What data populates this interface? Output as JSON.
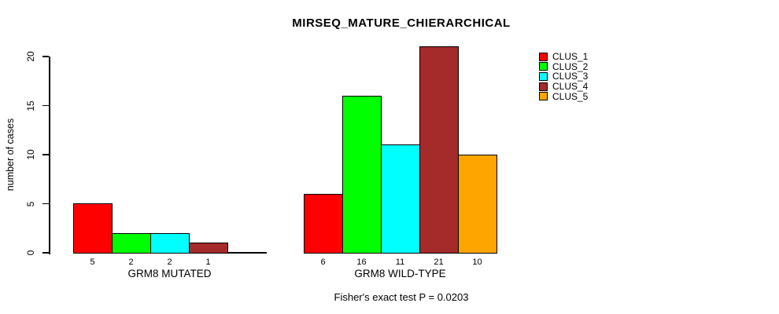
{
  "chart_data": {
    "type": "bar",
    "title": "MIRSEQ_MATURE_CHIERARCHICAL",
    "ylabel": "number of cases",
    "xlabel": "",
    "ylim": [
      0,
      21
    ],
    "yticks": [
      0,
      5,
      10,
      15,
      20
    ],
    "grid": false,
    "legend_position": "right-outside",
    "categories": [
      "GRM8 MUTATED",
      "GRM8 WILD-TYPE"
    ],
    "series": [
      {
        "name": "CLUS_1",
        "color": "#FF0000",
        "values": [
          5,
          6
        ]
      },
      {
        "name": "CLUS_2",
        "color": "#00FF00",
        "values": [
          2,
          16
        ]
      },
      {
        "name": "CLUS_3",
        "color": "#00FFFF",
        "values": [
          2,
          11
        ]
      },
      {
        "name": "CLUS_4",
        "color": "#A52A2A",
        "values": [
          1,
          21
        ]
      },
      {
        "name": "CLUS_5",
        "color": "#FFA500",
        "values": [
          0,
          10
        ]
      }
    ],
    "bar_value_labels_shown": {
      "GRM8 MUTATED": [
        "5",
        "2",
        "2",
        "1"
      ],
      "GRM8 WILD-TYPE": [
        "6",
        "16",
        "11",
        "21",
        "10"
      ]
    },
    "annotation": "Fisher's exact test P = 0.0203",
    "colors": {
      "background": "#FFFFFF",
      "axis": "#000000",
      "text": "#000000"
    }
  }
}
